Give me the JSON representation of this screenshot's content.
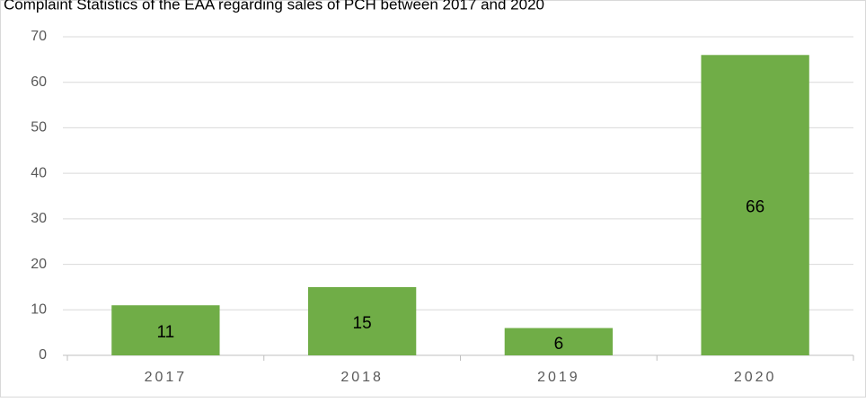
{
  "chart_data": {
    "type": "bar",
    "title": "Complaint Statistics of the EAA regarding sales of PCH between 2017 and 2020",
    "categories": [
      "2017",
      "2018",
      "2019",
      "2020"
    ],
    "values": [
      11,
      15,
      6,
      66
    ],
    "color": "#70ad47",
    "ylim": [
      0,
      70
    ],
    "yticks": [
      0,
      10,
      20,
      30,
      40,
      50,
      60,
      70
    ],
    "grid": true
  }
}
